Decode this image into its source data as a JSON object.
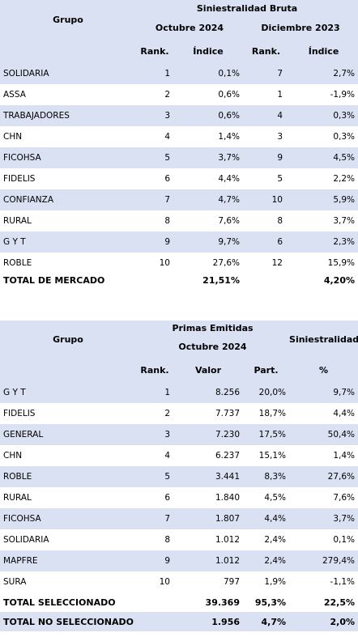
{
  "table1": {
    "col_group": "Grupo",
    "col_top": "Siniestralidad Bruta",
    "period_a": "Octubre 2024",
    "period_b": "Diciembre 2023",
    "rank_a": "Rank.",
    "index_a": "Índice",
    "rank_b": "Rank.",
    "index_b": "Índice",
    "rows": [
      {
        "name": "SOLIDARIA",
        "rank_a": "1",
        "idx_a": "0,1%",
        "rank_b": "7",
        "idx_b": "2,7%"
      },
      {
        "name": "ASSA",
        "rank_a": "2",
        "idx_a": "0,6%",
        "rank_b": "1",
        "idx_b": "-1,9%"
      },
      {
        "name": "TRABAJADORES",
        "rank_a": "3",
        "idx_a": "0,6%",
        "rank_b": "4",
        "idx_b": "0,3%"
      },
      {
        "name": "CHN",
        "rank_a": "4",
        "idx_a": "1,4%",
        "rank_b": "3",
        "idx_b": "0,3%"
      },
      {
        "name": "FICOHSA",
        "rank_a": "5",
        "idx_a": "3,7%",
        "rank_b": "9",
        "idx_b": "4,5%"
      },
      {
        "name": "FIDELIS",
        "rank_a": "6",
        "idx_a": "4,4%",
        "rank_b": "5",
        "idx_b": "2,2%"
      },
      {
        "name": "CONFIANZA",
        "rank_a": "7",
        "idx_a": "4,7%",
        "rank_b": "10",
        "idx_b": "5,9%"
      },
      {
        "name": "RURAL",
        "rank_a": "8",
        "idx_a": "7,6%",
        "rank_b": "8",
        "idx_b": "3,7%"
      },
      {
        "name": "G Y T",
        "rank_a": "9",
        "idx_a": "9,7%",
        "rank_b": "6",
        "idx_b": "2,3%"
      },
      {
        "name": "ROBLE",
        "rank_a": "10",
        "idx_a": "27,6%",
        "rank_b": "12",
        "idx_b": "15,9%"
      }
    ],
    "total": {
      "label": "TOTAL DE MERCADO",
      "idx_a": "21,51%",
      "idx_b": "4,20%"
    }
  },
  "table2": {
    "col_group": "Grupo",
    "col_primas": "Primas Emitidas",
    "col_sin": "Siniestralidad Bruta",
    "period": "Octubre 2024",
    "rank": "Rank.",
    "valor": "Valor",
    "part": "Part.",
    "pct": "%",
    "rows": [
      {
        "name": "G Y T",
        "rank": "1",
        "valor": "8.256",
        "part": "20,0%",
        "sin": "9,7%"
      },
      {
        "name": "FIDELIS",
        "rank": "2",
        "valor": "7.737",
        "part": "18,7%",
        "sin": "4,4%"
      },
      {
        "name": "GENERAL",
        "rank": "3",
        "valor": "7.230",
        "part": "17,5%",
        "sin": "50,4%"
      },
      {
        "name": "CHN",
        "rank": "4",
        "valor": "6.237",
        "part": "15,1%",
        "sin": "1,4%"
      },
      {
        "name": "ROBLE",
        "rank": "5",
        "valor": "3.441",
        "part": "8,3%",
        "sin": "27,6%"
      },
      {
        "name": "RURAL",
        "rank": "6",
        "valor": "1.840",
        "part": "4,5%",
        "sin": "7,6%"
      },
      {
        "name": "FICOHSA",
        "rank": "7",
        "valor": "1.807",
        "part": "4,4%",
        "sin": "3,7%"
      },
      {
        "name": "SOLIDARIA",
        "rank": "8",
        "valor": "1.012",
        "part": "2,4%",
        "sin": "0,1%"
      },
      {
        "name": "MAPFRE",
        "rank": "9",
        "valor": "1.012",
        "part": "2,4%",
        "sin": "279,4%"
      },
      {
        "name": "SURA",
        "rank": "10",
        "valor": "797",
        "part": "1,9%",
        "sin": "-1,1%"
      }
    ],
    "total_sel": {
      "label": "TOTAL SELECCIONADO",
      "valor": "39.369",
      "part": "95,3%",
      "sin": "22,5%"
    },
    "total_nosel": {
      "label": "TOTAL NO SELECCIONADO",
      "valor": "1.956",
      "part": "4,7%",
      "sin": "2,0%"
    }
  }
}
